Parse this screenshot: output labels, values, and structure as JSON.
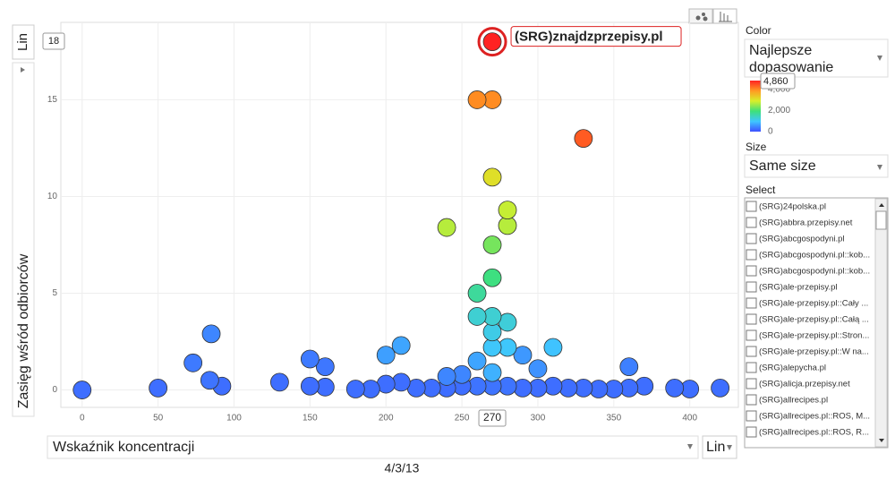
{
  "chart_data": {
    "type": "scatter",
    "y_label": "Zasięg wśród odbiorców",
    "x_label": "Wskaźnik koncentracji",
    "y_scale": "Lin",
    "x_scale": "Lin",
    "date": "4/3/13",
    "highlight": "(SRG)znajdzprzepisy.pl",
    "x": [
      270,
      260,
      270,
      330,
      270,
      240,
      280,
      280,
      270,
      270,
      260,
      260,
      270,
      280,
      270,
      270,
      280,
      310,
      210,
      200,
      85,
      73,
      84,
      92,
      150,
      160,
      130,
      150,
      160,
      360,
      260,
      290,
      300,
      240,
      250,
      270,
      0,
      50,
      180,
      190,
      200,
      210,
      220,
      230,
      240,
      250,
      260,
      270,
      280,
      290,
      300,
      310,
      320,
      330,
      340,
      350,
      360,
      370,
      390,
      400,
      420
    ],
    "values": [
      18,
      15,
      15,
      13,
      11,
      8.4,
      9.3,
      8.5,
      7.5,
      5.8,
      5,
      3.8,
      3.8,
      3.5,
      3,
      2.2,
      2.2,
      2.2,
      2.3,
      1.8,
      2.9,
      1.4,
      0.5,
      0.2,
      1.6,
      1.2,
      0.4,
      0.2,
      0.15,
      1.2,
      1.5,
      1.8,
      1.1,
      0.7,
      0.8,
      0.9,
      0,
      0.1,
      0.05,
      0.05,
      0.3,
      0.4,
      0.1,
      0.1,
      0.1,
      0.2,
      0.2,
      0.2,
      0.2,
      0.1,
      0.1,
      0.2,
      0.1,
      0.1,
      0.05,
      0.05,
      0.1,
      0.2,
      0.1,
      0.05,
      0.1
    ],
    "color_values": [
      4860,
      4000,
      4000,
      4400,
      3100,
      2700,
      2800,
      2700,
      2300,
      1900,
      1700,
      1300,
      1300,
      1250,
      1150,
      1000,
      1000,
      950,
      700,
      650,
      450,
      350,
      300,
      250,
      350,
      330,
      250,
      250,
      250,
      400,
      700,
      600,
      550,
      450,
      450,
      800,
      250,
      250,
      250,
      250,
      250,
      250,
      250,
      250,
      250,
      250,
      300,
      300,
      300,
      250,
      250,
      250,
      250,
      250,
      250,
      250,
      250,
      250,
      250,
      250,
      250
    ],
    "color_scale": [
      "#3d4fff",
      "#3fc6ff",
      "#3ee07a",
      "#d8ef2a",
      "#ff9a22",
      "#ff2222"
    ],
    "color_lim": [
      0,
      4860
    ],
    "color_ticks": [
      0,
      {
        "value": 2000,
        "label": "2,000"
      },
      {
        "value": 4000,
        "label": "4,000"
      }
    ],
    "color_max_label": "4,860",
    "xlim": [
      -14,
      432
    ],
    "ylim": [
      -0.9,
      19
    ],
    "xticks": [
      0,
      50,
      100,
      150,
      200,
      250,
      300,
      350,
      400
    ],
    "yticks": [
      0,
      5,
      10,
      15
    ],
    "grid": true
  },
  "panel": {
    "color_heading": "Color",
    "color_select": [
      "Najlepsze",
      "dopasowanie"
    ],
    "size_heading": "Size",
    "size_select": "Same size",
    "select_heading": "Select",
    "items": [
      "(SRG)24polska.pl",
      "(SRG)abbra.przepisy.net",
      "(SRG)abcgospodyni.pl",
      "(SRG)abcgospodyni.pl::kob...",
      "(SRG)abcgospodyni.pl::kob...",
      "(SRG)ale-przepisy.pl",
      "(SRG)ale-przepisy.pl::Cały ...",
      "(SRG)ale-przepisy.pl::Całą ...",
      "(SRG)ale-przepisy.pl::Stron...",
      "(SRG)ale-przepisy.pl::W na...",
      "(SRG)alepycha.pl",
      "(SRG)alicja.przepisy.net",
      "(SRG)allrecipes.pl",
      "(SRG)allrecipes.pl::ROS, M...",
      "(SRG)allrecipes.pl::ROS, R..."
    ]
  }
}
